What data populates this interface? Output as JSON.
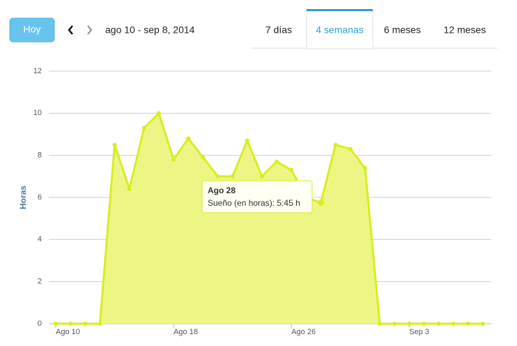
{
  "toolbar": {
    "today": "Hoy",
    "range": "ago 10 - sep 8, 2014",
    "tabs": [
      "7 días",
      "4 semanas",
      "6 meses",
      "12 meses"
    ],
    "active_tab": 1
  },
  "chart_data": {
    "type": "area",
    "y_label": "Horas",
    "categories": [
      "Ago 10",
      null,
      null,
      null,
      null,
      null,
      null,
      null,
      "Ago 18",
      null,
      null,
      null,
      null,
      null,
      null,
      null,
      "Ago 26",
      null,
      null,
      null,
      null,
      null,
      null,
      null,
      "Sep 3",
      null,
      null,
      null,
      null,
      null
    ],
    "series": [
      {
        "name": "Sueño (en horas)",
        "color": "#d8ee1c",
        "fill": "#ecf67e",
        "values": [
          0,
          0,
          0,
          0,
          8.5,
          6.4,
          9.3,
          10,
          7.8,
          8.8,
          7.9,
          7.0,
          7.0,
          8.7,
          7.0,
          7.7,
          7.3,
          6.0,
          5.75,
          8.5,
          8.3,
          7.4,
          0,
          0,
          0,
          0,
          0,
          0,
          0,
          0
        ]
      }
    ],
    "ylim": [
      0,
      12
    ],
    "yticks": [
      0,
      2,
      4,
      6,
      8,
      10,
      12
    ],
    "grid": true,
    "tooltip": {
      "title": "Ago 28",
      "text": "Sueño (en horas): 5:45 h",
      "index": 18
    }
  }
}
